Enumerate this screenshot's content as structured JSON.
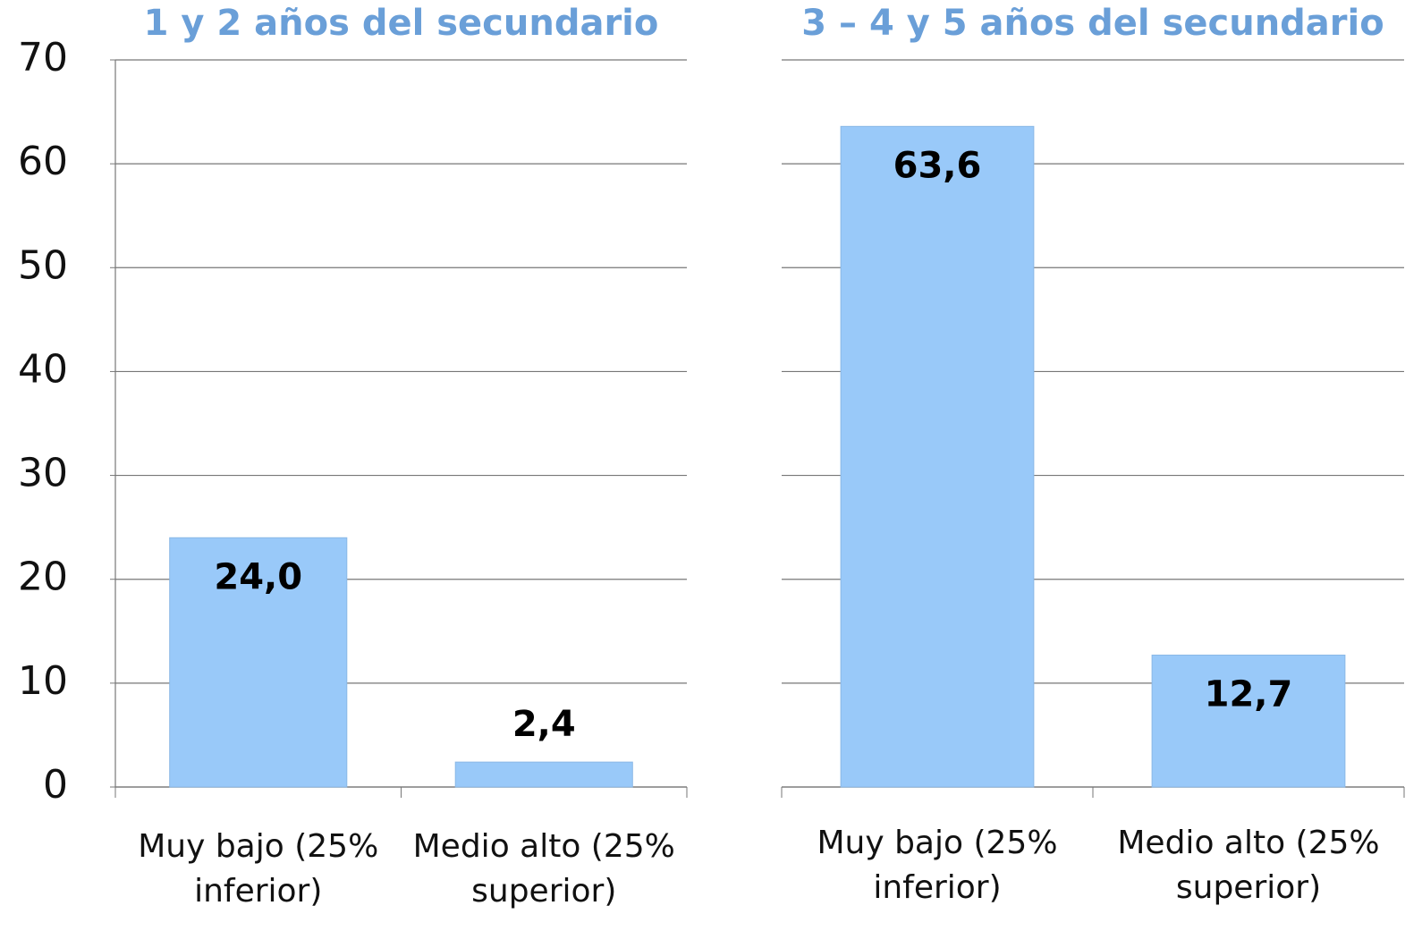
{
  "chart_data": [
    {
      "type": "bar",
      "title": "1 y 2 años del secundario",
      "categories": [
        "Muy bajo (25% inferior)",
        "Medio alto (25% superior)"
      ],
      "values": [
        24.0,
        2.4
      ],
      "value_labels": [
        "24,0",
        "2,4"
      ],
      "color": "#99c9f9",
      "ylim": [
        0,
        70
      ],
      "yticks": [
        0,
        10,
        20,
        30,
        40,
        50,
        60,
        70
      ],
      "grid": true,
      "ytick_labels": true
    },
    {
      "type": "bar",
      "title": "3 – 4 y 5 años del secundario",
      "categories": [
        "Muy bajo (25% inferior)",
        "Medio alto (25% superior)"
      ],
      "values": [
        63.6,
        12.7
      ],
      "value_labels": [
        "63,6",
        "12,7"
      ],
      "color": "#99c9f9",
      "ylim": [
        0,
        70
      ],
      "yticks": [
        0,
        10,
        20,
        30,
        40,
        50,
        60,
        70
      ],
      "grid": true,
      "ytick_labels": false
    }
  ]
}
